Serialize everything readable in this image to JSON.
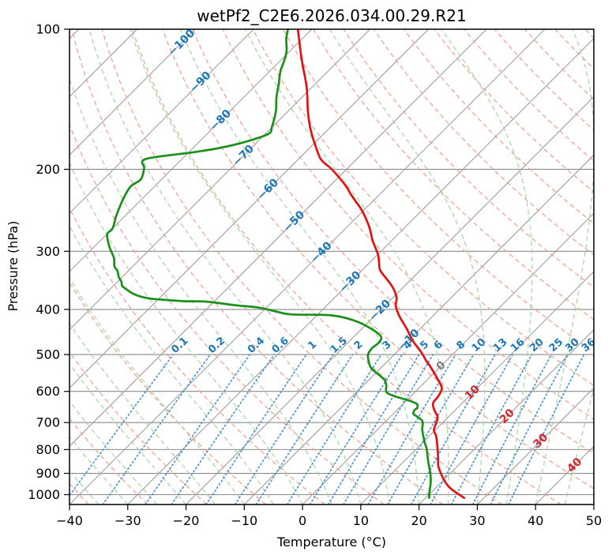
{
  "figure": {
    "title": "wetPf2_C2E6.2026.034.00.29.R21",
    "x_label": "Temperature (°C)",
    "y_label": "Pressure (hPa)"
  },
  "chart_data": {
    "type": "line",
    "chart_kind": "skewT-logP-sounding",
    "title": "wetPf2_C2E6.2026.034.00.29.R21",
    "xlabel": "Temperature (°C)",
    "ylabel": "Pressure (hPa)",
    "xlim": [
      -40,
      50
    ],
    "x_tick_step": 10,
    "pressure_lim": [
      1050,
      100
    ],
    "y_scale": "log",
    "y_ticks": [
      100,
      200,
      300,
      400,
      500,
      600,
      700,
      800,
      900,
      1000
    ],
    "grid": {
      "isotherm_range": [
        -130,
        50
      ],
      "isotherm_step": 10,
      "isotherm_color": "#9e9e9e",
      "pressure_line_color": "#8a8a8a",
      "grid_on": true
    },
    "isotherm_labels": {
      "values": [
        -100,
        -90,
        -80,
        -70,
        -60,
        -50,
        -40,
        -30,
        -20,
        -10,
        0,
        10,
        20,
        30,
        40
      ],
      "pressures": [
        107,
        130,
        157,
        187,
        221,
        259,
        302,
        349,
        402,
        465,
        529,
        604,
        679,
        767,
        865
      ],
      "neg_color": "#1f77b4",
      "zero_color": "#808080",
      "pos_color": "#d62728"
    },
    "dry_adiabats": {
      "theta_start": -50,
      "theta_end": 190,
      "step": 10,
      "color": "#f2a491"
    },
    "moist_adiabats": {
      "t_start": -40,
      "t_end": 50,
      "step": 5,
      "color": "#a6d7a6"
    },
    "mixing_ratio": {
      "values": [
        0.1,
        0.2,
        0.4,
        0.6,
        1,
        1.5,
        2,
        3,
        4,
        5,
        6,
        8,
        10,
        13,
        16,
        20,
        25,
        30,
        36
      ],
      "line_color": "#4a96d1",
      "label_color": "#1f77b4",
      "bottom_pressure": 1050,
      "top_pressure": 500,
      "label_pressure": 478
    },
    "series": [
      {
        "name": "temperature",
        "color": "#e01212",
        "points": [
          [
            100,
            -82.4
          ],
          [
            116,
            -76.6
          ],
          [
            133,
            -71.0
          ],
          [
            150,
            -66.6
          ],
          [
            165,
            -62.8
          ],
          [
            186,
            -57.3
          ],
          [
            193,
            -55.2
          ],
          [
            200,
            -52.5
          ],
          [
            217,
            -47.3
          ],
          [
            225,
            -45.3
          ],
          [
            234,
            -43.0
          ],
          [
            246,
            -40.1
          ],
          [
            266,
            -36.2
          ],
          [
            285,
            -33.2
          ],
          [
            306,
            -29.8
          ],
          [
            325,
            -27.5
          ],
          [
            333,
            -26.3
          ],
          [
            356,
            -22.2
          ],
          [
            377,
            -19.4
          ],
          [
            392,
            -18.2
          ],
          [
            412,
            -15.9
          ],
          [
            440,
            -12.3
          ],
          [
            467,
            -9.2
          ],
          [
            494,
            -5.8
          ],
          [
            516,
            -3.4
          ],
          [
            534,
            -1.4
          ],
          [
            563,
            1.5
          ],
          [
            590,
            3.9
          ],
          [
            614,
            4.7
          ],
          [
            636,
            5.0
          ],
          [
            658,
            6.4
          ],
          [
            684,
            8.3
          ],
          [
            725,
            9.7
          ],
          [
            747,
            11.1
          ],
          [
            774,
            12.5
          ],
          [
            832,
            15.2
          ],
          [
            866,
            16.6
          ],
          [
            900,
            18.4
          ],
          [
            944,
            20.9
          ],
          [
            974,
            23.0
          ],
          [
            1001,
            25.3
          ],
          [
            1016,
            26.6
          ]
        ]
      },
      {
        "name": "dewpoint",
        "color": "#1a8f1a",
        "points": [
          [
            100,
            -84.1
          ],
          [
            105,
            -82.7
          ],
          [
            111,
            -80.7
          ],
          [
            117,
            -79.3
          ],
          [
            123,
            -78.2
          ],
          [
            131,
            -76.3
          ],
          [
            140,
            -74.4
          ],
          [
            150,
            -72.1
          ],
          [
            162,
            -70.1
          ],
          [
            168,
            -69.5
          ],
          [
            175,
            -72.3
          ],
          [
            180,
            -75.5
          ],
          [
            184,
            -79.4
          ],
          [
            190,
            -86.2
          ],
          [
            199,
            -84.9
          ],
          [
            210,
            -83.6
          ],
          [
            218,
            -84.1
          ],
          [
            232,
            -83.2
          ],
          [
            251,
            -81.6
          ],
          [
            268,
            -80.0
          ],
          [
            276,
            -79.9
          ],
          [
            294,
            -77.3
          ],
          [
            310,
            -74.7
          ],
          [
            323,
            -73.2
          ],
          [
            331,
            -71.8
          ],
          [
            340,
            -70.7
          ],
          [
            349,
            -69.3
          ],
          [
            356,
            -68.5
          ],
          [
            362,
            -67.2
          ],
          [
            371,
            -65.0
          ],
          [
            378,
            -62.2
          ],
          [
            381,
            -59.3
          ],
          [
            384,
            -55.3
          ],
          [
            385,
            -51.2
          ],
          [
            392,
            -45.6
          ],
          [
            396,
            -41.6
          ],
          [
            404,
            -37.7
          ],
          [
            410,
            -34.5
          ],
          [
            412,
            -27.4
          ],
          [
            425,
            -22.0
          ],
          [
            445,
            -17.4
          ],
          [
            459,
            -15.2
          ],
          [
            472,
            -14.7
          ],
          [
            485,
            -14.9
          ],
          [
            500,
            -14.5
          ],
          [
            515,
            -13.4
          ],
          [
            534,
            -11.7
          ],
          [
            554,
            -9.0
          ],
          [
            567,
            -7.3
          ],
          [
            582,
            -6.1
          ],
          [
            602,
            -4.9
          ],
          [
            614,
            -2.9
          ],
          [
            626,
            0.0
          ],
          [
            638,
            2.3
          ],
          [
            651,
            3.1
          ],
          [
            658,
            3.0
          ],
          [
            671,
            3.5
          ],
          [
            679,
            4.5
          ],
          [
            693,
            6.1
          ],
          [
            707,
            6.9
          ],
          [
            725,
            7.7
          ],
          [
            747,
            8.9
          ],
          [
            774,
            10.4
          ],
          [
            798,
            11.8
          ],
          [
            832,
            13.4
          ],
          [
            866,
            15.0
          ],
          [
            900,
            16.6
          ],
          [
            944,
            18.3
          ],
          [
            983,
            19.5
          ],
          [
            1016,
            20.6
          ]
        ]
      }
    ]
  }
}
